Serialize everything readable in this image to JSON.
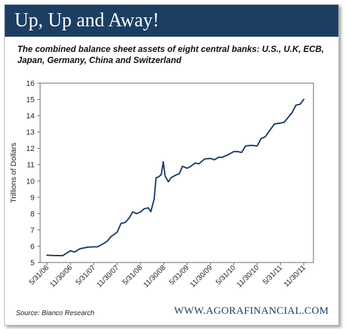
{
  "header": {
    "title": "Up, Up and Away!",
    "subtitle": "The combined balance sheet assets of eight central banks: U.S., U.K, ECB, Japan, Germany, China and Switzerland"
  },
  "footer": {
    "source": "Source: Bianco Research",
    "website": "WWW.AGORAFINANCIAL.COM"
  },
  "colors": {
    "title_bar": "#1c3e63",
    "line": "#1c3e63"
  },
  "chart_data": {
    "type": "line",
    "title": "",
    "xlabel": "",
    "ylabel": "Trillions of Dollars",
    "ylim": [
      5,
      16
    ],
    "yticks": [
      "5",
      "6",
      "7",
      "8",
      "9",
      "10",
      "11",
      "12",
      "13",
      "14",
      "15",
      "16"
    ],
    "xticks": [
      "5/31/06",
      "11/30/06",
      "5/31/07",
      "11/30/07",
      "5/31/08",
      "11/30/08",
      "5/31/09",
      "11/30/09",
      "5/31/10",
      "11/30/10",
      "5/31/11",
      "11/30/11"
    ],
    "xlim": [
      "5/31/06",
      "11/30/11"
    ],
    "grid": false,
    "series": [
      {
        "values": [
          [
            "2006-05-31",
            5.45
          ],
          [
            "2006-07-15",
            5.43
          ],
          [
            "2006-09-30",
            5.42
          ],
          [
            "2006-11-30",
            5.72
          ],
          [
            "2006-12-31",
            5.64
          ],
          [
            "2007-02-15",
            5.85
          ],
          [
            "2007-04-15",
            5.94
          ],
          [
            "2007-05-31",
            5.96
          ],
          [
            "2007-06-30",
            5.96
          ],
          [
            "2007-08-15",
            6.15
          ],
          [
            "2007-09-15",
            6.32
          ],
          [
            "2007-10-15",
            6.6
          ],
          [
            "2007-11-30",
            6.85
          ],
          [
            "2007-12-31",
            7.4
          ],
          [
            "2008-01-31",
            7.45
          ],
          [
            "2008-03-01",
            7.7
          ],
          [
            "2008-03-31",
            8.1
          ],
          [
            "2008-04-30",
            8.0
          ],
          [
            "2008-05-31",
            8.1
          ],
          [
            "2008-06-30",
            8.3
          ],
          [
            "2008-07-31",
            8.35
          ],
          [
            "2008-08-20",
            8.12
          ],
          [
            "2008-09-15",
            8.9
          ],
          [
            "2008-09-30",
            10.2
          ],
          [
            "2008-10-20",
            10.25
          ],
          [
            "2008-11-10",
            10.4
          ],
          [
            "2008-11-25",
            11.18
          ],
          [
            "2008-12-10",
            10.3
          ],
          [
            "2009-01-05",
            9.95
          ],
          [
            "2009-01-25",
            10.2
          ],
          [
            "2009-03-01",
            10.35
          ],
          [
            "2009-03-31",
            10.45
          ],
          [
            "2009-04-25",
            10.9
          ],
          [
            "2009-05-31",
            10.78
          ],
          [
            "2009-06-30",
            10.9
          ],
          [
            "2009-07-31",
            11.1
          ],
          [
            "2009-08-31",
            11.05
          ],
          [
            "2009-10-15",
            11.35
          ],
          [
            "2009-11-30",
            11.38
          ],
          [
            "2009-12-31",
            11.3
          ],
          [
            "2010-01-31",
            11.45
          ],
          [
            "2010-03-01",
            11.45
          ],
          [
            "2010-04-15",
            11.6
          ],
          [
            "2010-05-31",
            11.8
          ],
          [
            "2010-06-30",
            11.8
          ],
          [
            "2010-07-31",
            11.75
          ],
          [
            "2010-08-31",
            12.15
          ],
          [
            "2010-10-15",
            12.18
          ],
          [
            "2010-11-30",
            12.15
          ],
          [
            "2010-12-31",
            12.6
          ],
          [
            "2011-01-31",
            12.7
          ],
          [
            "2011-02-28",
            13.0
          ],
          [
            "2011-04-15",
            13.5
          ],
          [
            "2011-05-31",
            13.55
          ],
          [
            "2011-06-30",
            13.6
          ],
          [
            "2011-07-31",
            13.9
          ],
          [
            "2011-08-31",
            14.2
          ],
          [
            "2011-09-30",
            14.65
          ],
          [
            "2011-10-31",
            14.7
          ],
          [
            "2011-11-30",
            15.0
          ]
        ]
      }
    ]
  }
}
